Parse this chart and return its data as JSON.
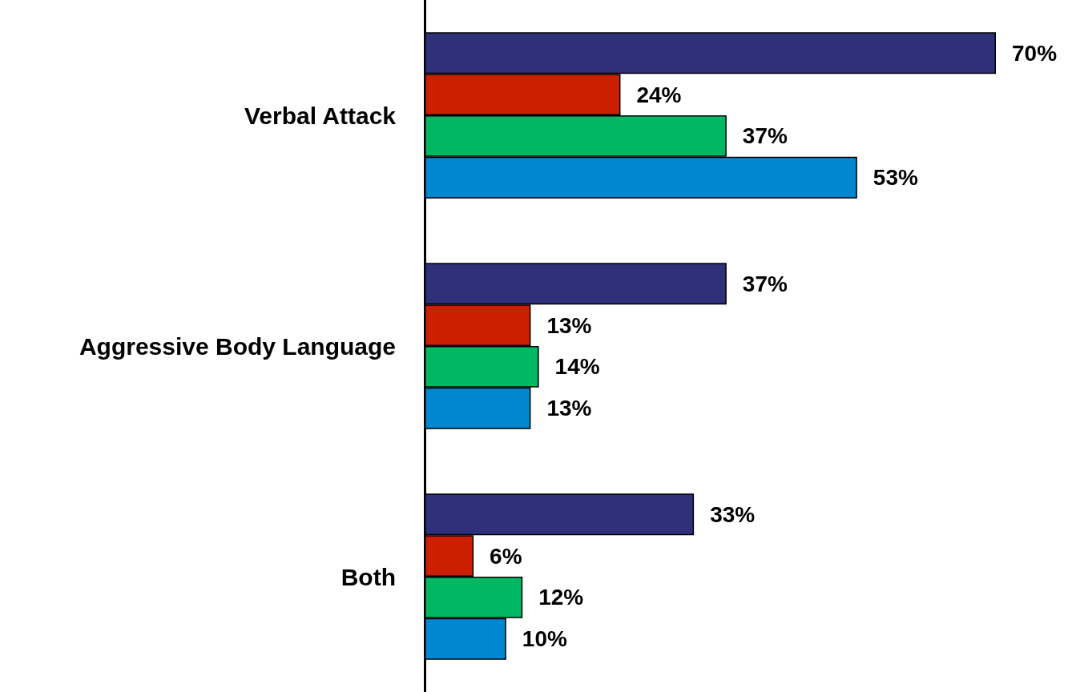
{
  "chart_data": {
    "type": "bar",
    "orientation": "horizontal",
    "categories": [
      "Verbal Attack",
      "Aggressive Body Language",
      "Both"
    ],
    "series": [
      {
        "color": "#2e3079",
        "values": [
          70,
          37,
          33
        ],
        "value_labels": [
          "70%",
          "37%",
          "33%"
        ]
      },
      {
        "color": "#cc1f00",
        "values": [
          24,
          13,
          6
        ],
        "value_labels": [
          "24%",
          "13%",
          "6%"
        ]
      },
      {
        "color": "#00b862",
        "values": [
          37,
          14,
          12
        ],
        "value_labels": [
          "37%",
          "14%",
          "12%"
        ]
      },
      {
        "color": "#0087d0",
        "values": [
          53,
          13,
          10
        ],
        "value_labels": [
          "53%",
          "13%",
          "10%"
        ]
      }
    ]
  }
}
